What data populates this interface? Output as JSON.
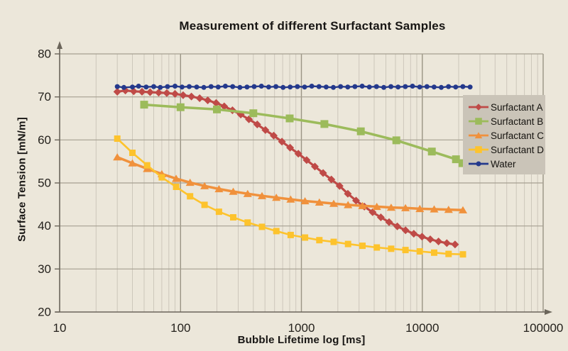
{
  "chart_data": {
    "type": "line",
    "title": "Measurement of different Surfactant Samples",
    "xlabel": "Bubble Lifetime log [ms]",
    "ylabel": "Surface Tension [mN/m]",
    "x_scale": "log",
    "xlim": [
      10,
      100000
    ],
    "ylim": [
      20,
      80
    ],
    "x_ticks": [
      10,
      100,
      1000,
      10000,
      100000
    ],
    "y_ticks": [
      20,
      30,
      40,
      50,
      60,
      70,
      80
    ],
    "grid": "major-horizontal, log-minor-vertical",
    "legend_position": "inside-right",
    "series": [
      {
        "name": "Surfactant A",
        "color": "#bf4a47",
        "marker": "diamond",
        "marker_size": 5.5,
        "line_width": 3.2,
        "points": [
          [
            30,
            71.2
          ],
          [
            35,
            71.5
          ],
          [
            41,
            71.3
          ],
          [
            48,
            71.2
          ],
          [
            56,
            71.1
          ],
          [
            66,
            71.0
          ],
          [
            77,
            70.9
          ],
          [
            90,
            70.7
          ],
          [
            105,
            70.4
          ],
          [
            123,
            70.1
          ],
          [
            144,
            69.7
          ],
          [
            168,
            69.2
          ],
          [
            197,
            68.6
          ],
          [
            230,
            67.8
          ],
          [
            269,
            66.9
          ],
          [
            315,
            65.9
          ],
          [
            368,
            64.8
          ],
          [
            431,
            63.6
          ],
          [
            504,
            62.3
          ],
          [
            590,
            61.0
          ],
          [
            690,
            59.6
          ],
          [
            807,
            58.2
          ],
          [
            944,
            56.8
          ],
          [
            1105,
            55.3
          ],
          [
            1293,
            53.8
          ],
          [
            1513,
            52.3
          ],
          [
            1770,
            50.8
          ],
          [
            2071,
            49.3
          ],
          [
            2423,
            47.5
          ],
          [
            2835,
            45.9
          ],
          [
            3317,
            44.5
          ],
          [
            3881,
            43.2
          ],
          [
            4541,
            42.0
          ],
          [
            5313,
            40.9
          ],
          [
            6216,
            39.9
          ],
          [
            7273,
            39.0
          ],
          [
            8510,
            38.2
          ],
          [
            9957,
            37.5
          ],
          [
            11650,
            36.9
          ],
          [
            13630,
            36.4
          ],
          [
            15948,
            36.0
          ],
          [
            18660,
            35.7
          ]
        ]
      },
      {
        "name": "Surfactant B",
        "color": "#9cbb5b",
        "marker": "square",
        "marker_size": 5.5,
        "line_width": 3.5,
        "points": [
          [
            50,
            68.2
          ],
          [
            100,
            67.6
          ],
          [
            200,
            67.1
          ],
          [
            400,
            66.2
          ],
          [
            800,
            65.0
          ],
          [
            1550,
            63.7
          ],
          [
            3100,
            62.0
          ],
          [
            6100,
            59.9
          ],
          [
            12000,
            57.3
          ],
          [
            19000,
            55.5
          ],
          [
            21500,
            54.6
          ]
        ]
      },
      {
        "name": "Surfactant C",
        "color": "#f0913c",
        "marker": "triangle",
        "marker_size": 5.5,
        "line_width": 3.5,
        "points": [
          [
            30,
            56.0
          ],
          [
            40,
            54.6
          ],
          [
            53,
            53.3
          ],
          [
            70,
            52.1
          ],
          [
            92,
            51.0
          ],
          [
            120,
            50.1
          ],
          [
            158,
            49.3
          ],
          [
            208,
            48.6
          ],
          [
            273,
            48.0
          ],
          [
            359,
            47.5
          ],
          [
            472,
            47.0
          ],
          [
            620,
            46.6
          ],
          [
            815,
            46.2
          ],
          [
            1071,
            45.8
          ],
          [
            1408,
            45.5
          ],
          [
            1851,
            45.2
          ],
          [
            2433,
            44.9
          ],
          [
            3198,
            44.7
          ],
          [
            4204,
            44.5
          ],
          [
            5526,
            44.3
          ],
          [
            7264,
            44.2
          ],
          [
            9548,
            44.0
          ],
          [
            12551,
            43.9
          ],
          [
            16499,
            43.8
          ],
          [
            21689,
            43.7
          ]
        ]
      },
      {
        "name": "Surfactant D",
        "color": "#fdc32d",
        "marker": "square",
        "marker_size": 4.5,
        "line_width": 2.6,
        "points": [
          [
            30,
            60.3
          ],
          [
            40,
            57.0
          ],
          [
            53,
            54.1
          ],
          [
            70,
            51.3
          ],
          [
            92,
            49.1
          ],
          [
            120,
            46.9
          ],
          [
            158,
            44.9
          ],
          [
            208,
            43.3
          ],
          [
            273,
            42.0
          ],
          [
            359,
            40.8
          ],
          [
            472,
            39.8
          ],
          [
            620,
            38.8
          ],
          [
            815,
            37.9
          ],
          [
            1071,
            37.3
          ],
          [
            1408,
            36.7
          ],
          [
            1851,
            36.3
          ],
          [
            2433,
            35.8
          ],
          [
            3198,
            35.4
          ],
          [
            4204,
            35.0
          ],
          [
            5526,
            34.7
          ],
          [
            7264,
            34.4
          ],
          [
            9548,
            34.1
          ],
          [
            12551,
            33.8
          ],
          [
            16499,
            33.5
          ],
          [
            21689,
            33.4
          ]
        ]
      },
      {
        "name": "Water",
        "color": "#24398c",
        "marker": "circle",
        "marker_size": 3.5,
        "line_width": 2.4,
        "points": [
          [
            30,
            72.4
          ],
          [
            34,
            72.2
          ],
          [
            40,
            72.3
          ],
          [
            45,
            72.5
          ],
          [
            52,
            72.3
          ],
          [
            60,
            72.4
          ],
          [
            68,
            72.2
          ],
          [
            78,
            72.4
          ],
          [
            90,
            72.5
          ],
          [
            103,
            72.3
          ],
          [
            118,
            72.4
          ],
          [
            136,
            72.3
          ],
          [
            156,
            72.2
          ],
          [
            179,
            72.4
          ],
          [
            205,
            72.3
          ],
          [
            235,
            72.5
          ],
          [
            270,
            72.4
          ],
          [
            310,
            72.2
          ],
          [
            355,
            72.3
          ],
          [
            407,
            72.4
          ],
          [
            467,
            72.5
          ],
          [
            536,
            72.3
          ],
          [
            615,
            72.4
          ],
          [
            705,
            72.2
          ],
          [
            808,
            72.3
          ],
          [
            927,
            72.4
          ],
          [
            1063,
            72.3
          ],
          [
            1219,
            72.5
          ],
          [
            1398,
            72.4
          ],
          [
            1604,
            72.3
          ],
          [
            1839,
            72.2
          ],
          [
            2109,
            72.4
          ],
          [
            2419,
            72.3
          ],
          [
            2774,
            72.4
          ],
          [
            3182,
            72.5
          ],
          [
            3649,
            72.3
          ],
          [
            4185,
            72.4
          ],
          [
            4800,
            72.2
          ],
          [
            5505,
            72.4
          ],
          [
            6313,
            72.3
          ],
          [
            7241,
            72.4
          ],
          [
            8304,
            72.5
          ],
          [
            9524,
            72.3
          ],
          [
            10923,
            72.4
          ],
          [
            12527,
            72.3
          ],
          [
            14367,
            72.2
          ],
          [
            16477,
            72.4
          ],
          [
            18898,
            72.3
          ],
          [
            21674,
            72.4
          ],
          [
            24858,
            72.3
          ]
        ]
      }
    ],
    "colors": {
      "background": "#ece7da",
      "grid_minor": "#cdc7bb",
      "grid_major": "#9a9484",
      "grid_horizontal": "#a59f90",
      "axis": "#6b655a",
      "text": "#25221d",
      "legend_background": "#cac4b8"
    }
  }
}
